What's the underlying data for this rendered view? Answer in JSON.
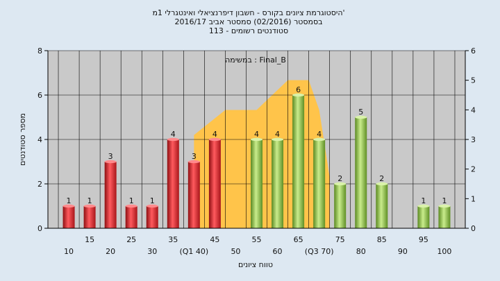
{
  "chart_data": {
    "type": "bar",
    "title_lines": [
      "היסטוגרמת ציונים בקורס - חשבון דיפרנציאלי ואינטגרלי 1מ'",
      "בסמסטר  (02/2016)  סמסטר אביב 2016/17",
      "סטודנטים רשומים - 113"
    ],
    "annotation": "במשימה : Final_B",
    "xlabel": "טווח ציונים",
    "ylabel": "מספר סטודנטים",
    "ylim": [
      0,
      8
    ],
    "yticks": [
      0,
      2,
      4,
      6,
      8
    ],
    "y2lim": [
      0,
      6
    ],
    "y2ticks": [
      0,
      1,
      2,
      3,
      4,
      5,
      6
    ],
    "x_tick_labels": [
      {
        "x": 10,
        "text": "10",
        "row": 2
      },
      {
        "x": 15,
        "text": "15",
        "row": 1
      },
      {
        "x": 20,
        "text": "20",
        "row": 2
      },
      {
        "x": 25,
        "text": "25",
        "row": 1
      },
      {
        "x": 30,
        "text": "30",
        "row": 2
      },
      {
        "x": 35,
        "text": "35",
        "row": 1
      },
      {
        "x": 40,
        "text": "(Q1 40)",
        "row": 2
      },
      {
        "x": 45,
        "text": "45",
        "row": 1
      },
      {
        "x": 50,
        "text": "50",
        "row": 2
      },
      {
        "x": 55,
        "text": "55",
        "row": 1
      },
      {
        "x": 60,
        "text": "60",
        "row": 2
      },
      {
        "x": 65,
        "text": "65",
        "row": 1
      },
      {
        "x": 70,
        "text": "(Q3 70)",
        "row": 2
      },
      {
        "x": 75,
        "text": "75",
        "row": 1
      },
      {
        "x": 80,
        "text": "80",
        "row": 2
      },
      {
        "x": 85,
        "text": "85",
        "row": 1
      },
      {
        "x": 90,
        "text": "90",
        "row": 2
      },
      {
        "x": 95,
        "text": "95",
        "row": 1
      },
      {
        "x": 100,
        "text": "100",
        "row": 2
      }
    ],
    "bars": [
      {
        "x": 10,
        "value": 1,
        "label": "1",
        "group": "fail"
      },
      {
        "x": 15,
        "value": 1,
        "label": "1",
        "group": "fail"
      },
      {
        "x": 20,
        "value": 3,
        "label": "3",
        "group": "fail"
      },
      {
        "x": 25,
        "value": 1,
        "label": "1",
        "group": "fail"
      },
      {
        "x": 30,
        "value": 1,
        "label": "1",
        "group": "fail"
      },
      {
        "x": 35,
        "value": 4,
        "label": "4",
        "group": "fail"
      },
      {
        "x": 40,
        "value": 3,
        "label": "3",
        "group": "fail"
      },
      {
        "x": 45,
        "value": 4,
        "label": "4",
        "group": "fail"
      },
      {
        "x": 55,
        "value": 4,
        "label": "4",
        "group": "pass"
      },
      {
        "x": 60,
        "value": 4,
        "label": "4",
        "group": "pass"
      },
      {
        "x": 65,
        "value": 6,
        "label": "6",
        "group": "pass"
      },
      {
        "x": 70,
        "value": 4,
        "label": "4",
        "group": "pass"
      },
      {
        "x": 75,
        "value": 2,
        "label": "2",
        "group": "pass"
      },
      {
        "x": 80,
        "value": 5,
        "label": "5",
        "group": "pass"
      },
      {
        "x": 85,
        "value": 2,
        "label": "2",
        "group": "pass"
      },
      {
        "x": 95,
        "value": 1,
        "label": "1",
        "group": "pass"
      },
      {
        "x": 100,
        "value": 1,
        "label": "1",
        "group": "pass"
      }
    ],
    "highlight_area": {
      "points": [
        [
          40,
          0
        ],
        [
          40,
          4.2
        ],
        [
          47.5,
          5.33
        ],
        [
          55,
          5.33
        ],
        [
          62.5,
          6.67
        ],
        [
          67.5,
          6.67
        ],
        [
          70,
          5.33
        ],
        [
          72.5,
          2.3
        ],
        [
          72.5,
          0
        ]
      ],
      "color": "#ffc44a"
    },
    "colors": {
      "fail": "#e0262b",
      "pass": "#8cc04a",
      "plot_bg": "#c9c9c9",
      "page_bg": "#dde8f2",
      "grid": "#000000"
    }
  }
}
